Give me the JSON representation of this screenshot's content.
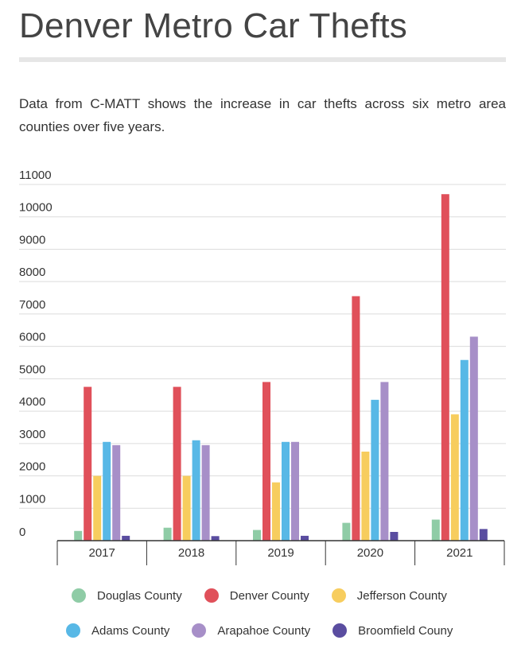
{
  "page": {
    "title": "Denver Metro Car Thefts",
    "subtitle": "Data from C-MATT shows the increase in car thefts across six metro area counties over five years."
  },
  "chart_data": {
    "type": "bar",
    "title": "Denver Metro Car Thefts",
    "subtitle": "Data from C-MATT shows the increase in car thefts across six metro area counties over five years.",
    "xlabel": "",
    "ylabel": "",
    "categories": [
      "2017",
      "2018",
      "2019",
      "2020",
      "2021"
    ],
    "ylim": [
      0,
      11000
    ],
    "yticks": [
      0,
      1000,
      2000,
      3000,
      4000,
      5000,
      6000,
      7000,
      8000,
      9000,
      10000,
      11000
    ],
    "grid": true,
    "legend_position": "bottom",
    "series": [
      {
        "name": "Douglas County",
        "color": "#8fcca6",
        "values": [
          300,
          400,
          330,
          550,
          650
        ]
      },
      {
        "name": "Denver County",
        "color": "#e0505a",
        "values": [
          4750,
          4750,
          4900,
          7550,
          10700
        ]
      },
      {
        "name": "Jefferson County",
        "color": "#f7cd5e",
        "values": [
          2000,
          2000,
          1800,
          2750,
          3900
        ]
      },
      {
        "name": "Adams County",
        "color": "#58b8e6",
        "values": [
          3050,
          3100,
          3050,
          4350,
          5580
        ]
      },
      {
        "name": "Arapahoe County",
        "color": "#a78fc8",
        "values": [
          2950,
          2950,
          3050,
          4900,
          6300
        ]
      },
      {
        "name": "Broomfield Couny",
        "color": "#5a4da0",
        "values": [
          150,
          140,
          150,
          270,
          360
        ]
      }
    ]
  }
}
